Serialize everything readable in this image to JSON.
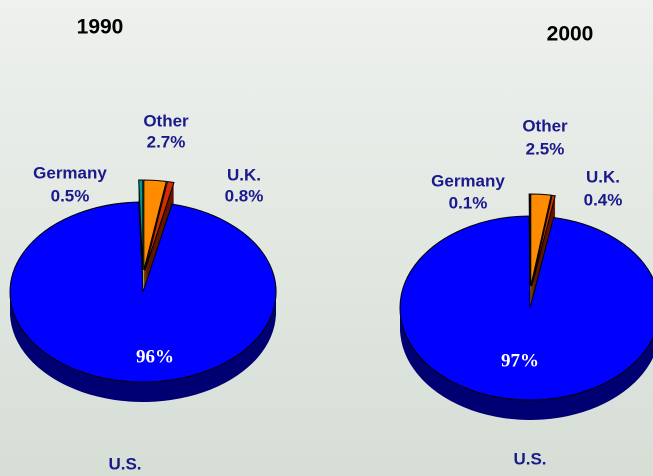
{
  "chart_data": [
    {
      "type": "pie",
      "title": "1990",
      "categories": [
        "Other",
        "U.K.",
        "U.S.",
        "Germany"
      ],
      "values": [
        2.7,
        0.8,
        96,
        0.5
      ],
      "value_labels": [
        "2.7%",
        "0.8%",
        "96%",
        "0.5%"
      ],
      "colors": [
        "#ff8c00",
        "#d03000",
        "#0000ff",
        "#009b8c"
      ]
    },
    {
      "type": "pie",
      "title": "2000",
      "categories": [
        "Other",
        "U.K.",
        "U.S.",
        "Germany"
      ],
      "values": [
        2.5,
        0.4,
        97,
        0.1
      ],
      "value_labels": [
        "2.5%",
        "0.4%",
        "97%",
        "0.1%"
      ],
      "colors": [
        "#ff8c00",
        "#d03000",
        "#0000ff",
        "#009b8c"
      ]
    }
  ]
}
